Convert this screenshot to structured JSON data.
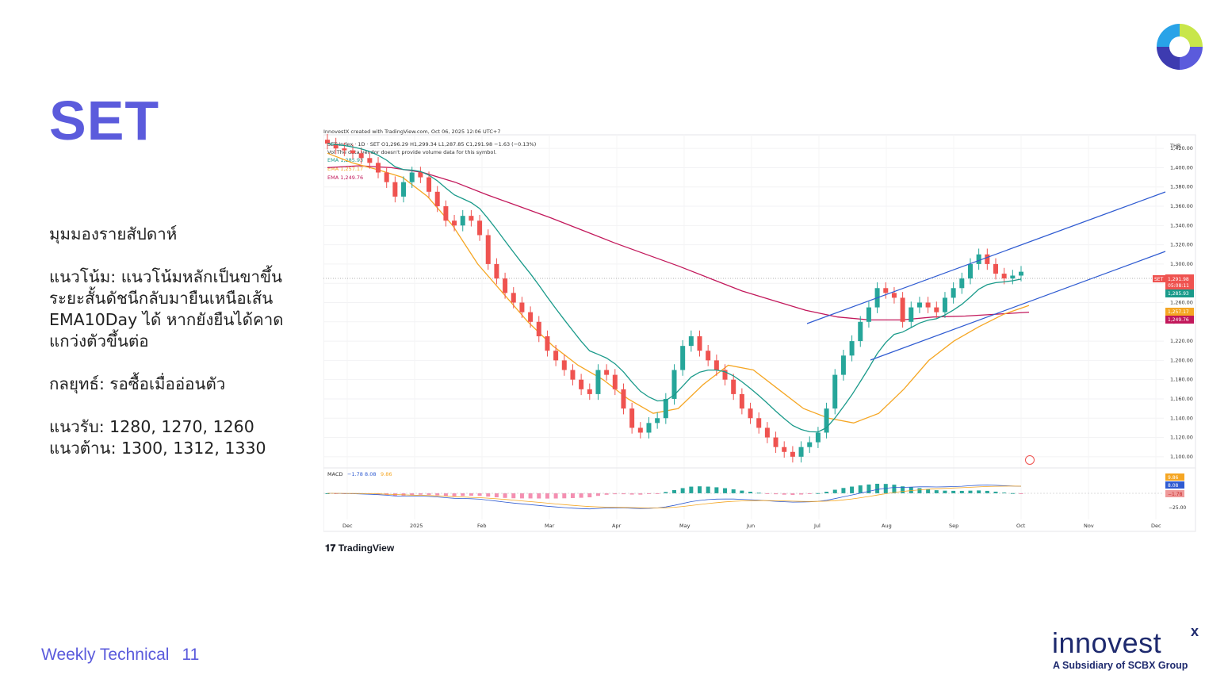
{
  "slide": {
    "title": "SET",
    "section_heading": "มุมมองรายสัปดาห์",
    "trend_text": "แนวโน้ม: แนวโน้มหลักเป็นขาขึ้น ระยะสั้นดัชนีกลับมายืนเหนือเส้น EMA10Day ได้ หากยังยืนได้คาดแกว่งตัวขึ้นต่อ",
    "strategy_text": "กลยุทธ์: รอซื้อเมื่ออ่อนตัว",
    "support_text": "แนวรับ: 1280, 1270, 1260",
    "resistance_text": "แนวต้าน: 1300, 1312, 1330",
    "footer_label": "Weekly Technical",
    "page_number": "11",
    "brand_word": "innovest",
    "brand_x": "x",
    "brand_sub": "A Subsidiary of SCBX Group",
    "tv_attrib": "TradingView"
  },
  "colors": {
    "accent": "#5b5bdc",
    "navy": "#1e2a6e",
    "up": "#26a69a",
    "down": "#ef5350",
    "ema_short": "#1a9a8a",
    "ema_mid": "#f5a623",
    "ema_long": "#c2185b",
    "channel": "#2f5bd1"
  },
  "chart_data": {
    "type": "line",
    "header": "InnovestX created with TradingView.com, Oct 06, 2025 12:06 UTC+7",
    "symbol_line": "SET Index · 1D · SET  O1,296.29  H1,299.34  L1,287.85  C1,291.98  −1.63 (−0.13%)",
    "vol_line": "Vol  The data vendor doesn't provide volume data for this symbol.",
    "ema_labels": [
      "EMA  1,285.93",
      "EMA  1,257.17",
      "EMA  1,249.76"
    ],
    "currency": "THB",
    "x_ticks": [
      "Dec",
      "2025",
      "Feb",
      "Mar",
      "Apr",
      "May",
      "Jun",
      "Jul",
      "Aug",
      "Sep",
      "Oct",
      "Nov",
      "Dec"
    ],
    "y_ticks": [
      "1,420.00",
      "1,400.00",
      "1,380.00",
      "1,360.00",
      "1,340.00",
      "1,320.00",
      "1,300.00",
      "1,280.00",
      "1,260.00",
      "1,240.00",
      "1,220.00",
      "1,200.00",
      "1,180.00",
      "1,160.00",
      "1,140.00",
      "1,120.00",
      "1,100.00"
    ],
    "ylim": [
      1090,
      1430
    ],
    "price_labels": {
      "set_tag": "SET",
      "last": "1,291.98",
      "countdown": "05:08:11",
      "ema_short": "1,285.93",
      "ema_mid": "1,257.17",
      "ema_long": "1,249.76"
    },
    "close_series": [
      {
        "month": "Dec",
        "values": [
          1425,
          1420,
          1418,
          1415,
          1410,
          1405,
          1395,
          1385
        ]
      },
      {
        "month": "2025",
        "values": [
          1370,
          1385,
          1395,
          1390,
          1375,
          1360,
          1345,
          1340
        ]
      },
      {
        "month": "Feb",
        "values": [
          1350,
          1345,
          1330,
          1300,
          1285,
          1270,
          1260,
          1250
        ]
      },
      {
        "month": "Mar",
        "values": [
          1240,
          1225,
          1210,
          1200,
          1190,
          1180,
          1170,
          1165
        ]
      },
      {
        "month": "Apr",
        "values": [
          1190,
          1185,
          1170,
          1150,
          1130,
          1125,
          1135,
          1140
        ]
      },
      {
        "month": "May",
        "values": [
          1160,
          1190,
          1215,
          1225,
          1210,
          1200,
          1190,
          1180
        ]
      },
      {
        "month": "Jun",
        "values": [
          1165,
          1150,
          1140,
          1130,
          1120,
          1110,
          1105,
          1100
        ]
      },
      {
        "month": "Jul",
        "values": [
          1110,
          1115,
          1125,
          1150,
          1185,
          1205,
          1220,
          1240
        ]
      },
      {
        "month": "Aug",
        "values": [
          1255,
          1275,
          1270,
          1265,
          1240,
          1255,
          1260,
          1255
        ]
      },
      {
        "month": "Sep",
        "values": [
          1250,
          1265,
          1275,
          1285,
          1300,
          1310,
          1300,
          1290
        ]
      },
      {
        "month": "Oct",
        "values": [
          1285,
          1288,
          1292
        ]
      }
    ],
    "ema_mid_series": [
      1415,
      1405,
      1398,
      1390,
      1370,
      1340,
      1300,
      1270,
      1240,
      1215,
      1195,
      1180,
      1160,
      1145,
      1150,
      1175,
      1195,
      1190,
      1170,
      1150,
      1140,
      1135,
      1145,
      1170,
      1200,
      1220,
      1235,
      1248,
      1257
    ],
    "ema_long_series": [
      1400,
      1402,
      1400,
      1395,
      1385,
      1372,
      1360,
      1348,
      1335,
      1322,
      1310,
      1298,
      1285,
      1272,
      1262,
      1252,
      1245,
      1242,
      1242,
      1245,
      1246,
      1248,
      1250
    ],
    "macd": {
      "label": "MACD",
      "values_text": [
        "−1.78",
        "8.08",
        "9.86"
      ],
      "right_ticks": [
        "9.86",
        "8.08",
        "−1.78",
        "−25.00"
      ]
    }
  }
}
